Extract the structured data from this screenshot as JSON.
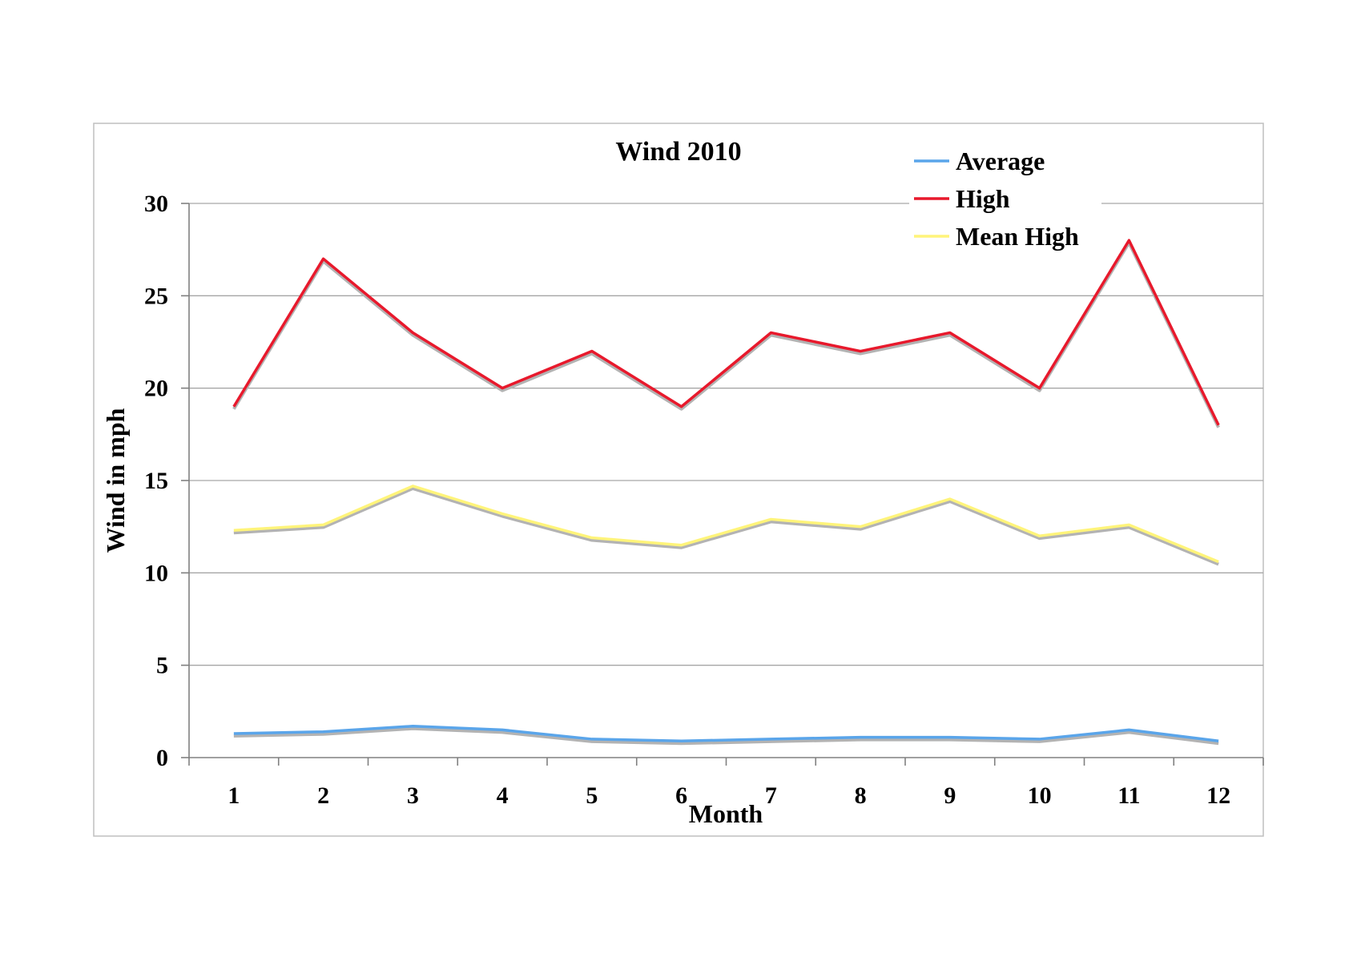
{
  "chart_data": {
    "type": "line",
    "title": "Wind 2010",
    "xlabel": "Month",
    "ylabel": "Wind in mph",
    "categories": [
      "1",
      "2",
      "3",
      "4",
      "5",
      "6",
      "7",
      "8",
      "9",
      "10",
      "11",
      "12"
    ],
    "ylim": [
      0,
      30
    ],
    "yticks": [
      "0",
      "5",
      "10",
      "15",
      "20",
      "25",
      "30"
    ],
    "grid": true,
    "legend_position": "top-right",
    "series": [
      {
        "name": "Average",
        "color": "#5aa5ea",
        "values": [
          1.3,
          1.4,
          1.7,
          1.5,
          1.0,
          0.9,
          1.0,
          1.1,
          1.1,
          1.0,
          1.5,
          0.9
        ]
      },
      {
        "name": "High",
        "color": "#e8192c",
        "values": [
          19,
          27,
          23,
          20,
          22,
          19,
          23,
          22,
          23,
          20,
          28,
          18
        ]
      },
      {
        "name": "Mean High",
        "color": "#fff47a",
        "values": [
          12.3,
          12.6,
          14.7,
          13.2,
          11.9,
          11.5,
          12.9,
          12.5,
          14.0,
          12.0,
          12.6,
          10.6
        ]
      }
    ],
    "shadow_color": "#b3b3b3"
  }
}
